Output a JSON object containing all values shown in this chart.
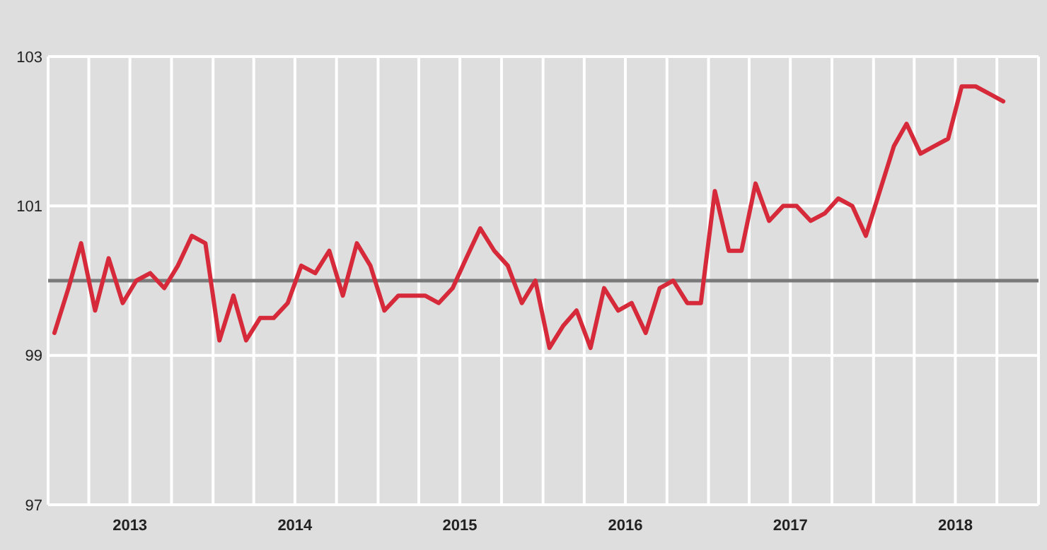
{
  "chart_data": {
    "type": "line",
    "x": [
      "2013-01-15",
      "2013-02-15",
      "2013-03-15",
      "2013-04-15",
      "2013-05-15",
      "2013-06-15",
      "2013-07-15",
      "2013-08-15",
      "2013-09-15",
      "2013-10-15",
      "2013-11-15",
      "2013-12-15",
      "2014-01-15",
      "2014-02-15",
      "2014-03-15",
      "2014-04-15",
      "2014-05-15",
      "2014-06-15",
      "2014-07-15",
      "2014-08-15",
      "2014-09-15",
      "2014-10-15",
      "2014-11-15",
      "2014-12-15",
      "2015-01-15",
      "2015-02-15",
      "2015-03-15",
      "2015-04-15",
      "2015-05-15",
      "2015-06-15",
      "2015-07-15",
      "2015-08-15",
      "2015-09-15",
      "2015-10-15",
      "2015-11-15",
      "2015-12-15",
      "2016-01-15",
      "2016-02-15",
      "2016-03-15",
      "2016-04-15",
      "2016-05-15",
      "2016-06-15",
      "2016-07-15",
      "2016-08-15",
      "2016-09-15",
      "2016-10-15",
      "2016-11-15",
      "2016-12-15",
      "2017-01-15",
      "2017-02-15",
      "2017-03-15",
      "2017-04-15",
      "2017-05-15",
      "2017-06-15",
      "2017-07-15",
      "2017-08-15",
      "2017-09-15",
      "2017-10-15",
      "2017-11-15",
      "2017-12-15",
      "2018-01-15",
      "2018-02-15",
      "2018-03-15",
      "2018-04-15",
      "2018-05-15",
      "2018-06-15",
      "2018-07-15",
      "2018-08-15",
      "2018-09-15",
      "2018-10-15"
    ],
    "series": [
      {
        "color": "#d62a3a",
        "values": [
          99.3,
          99.9,
          100.5,
          99.6,
          100.3,
          99.7,
          100,
          100.1,
          99.9,
          100.2,
          100.6,
          100.5,
          99.2,
          99.8,
          99.2,
          99.5,
          99.5,
          99.7,
          100.2,
          100.1,
          100.4,
          99.8,
          100.5,
          100.2,
          99.6,
          99.8,
          99.8,
          99.8,
          99.7,
          99.9,
          100.3,
          100.7,
          100.4,
          100.2,
          99.7,
          100,
          99.1,
          99.4,
          99.6,
          99.1,
          99.9,
          99.6,
          99.7,
          99.3,
          99.9,
          100,
          99.7,
          99.7,
          101.2,
          100.4,
          100.4,
          101.3,
          100.8,
          101,
          101,
          100.8,
          100.9,
          101.1,
          101,
          100.6,
          101.2,
          101.8,
          102.1,
          101.7,
          101.8,
          101.9,
          102.6,
          102.6,
          102.5,
          102.4
        ]
      }
    ],
    "xlim": [
      "2013-01-01",
      "2019-01-01"
    ],
    "xticks": [
      {
        "value": "2013-04-01",
        "label": null
      },
      {
        "value": "2013-07-01",
        "label": "2013"
      },
      {
        "value": "2013-10-01",
        "label": null
      },
      {
        "value": "2014-01-01",
        "label": null
      },
      {
        "value": "2014-04-01",
        "label": null
      },
      {
        "value": "2014-07-01",
        "label": "2014"
      },
      {
        "value": "2014-10-01",
        "label": null
      },
      {
        "value": "2015-01-01",
        "label": null
      },
      {
        "value": "2015-04-01",
        "label": null
      },
      {
        "value": "2015-07-01",
        "label": "2015"
      },
      {
        "value": "2015-10-01",
        "label": null
      },
      {
        "value": "2016-01-01",
        "label": null
      },
      {
        "value": "2016-04-01",
        "label": null
      },
      {
        "value": "2016-07-01",
        "label": "2016"
      },
      {
        "value": "2016-10-01",
        "label": null
      },
      {
        "value": "2017-01-01",
        "label": null
      },
      {
        "value": "2017-04-01",
        "label": null
      },
      {
        "value": "2017-07-01",
        "label": "2017"
      },
      {
        "value": "2017-10-01",
        "label": null
      },
      {
        "value": "2018-01-01",
        "label": null
      },
      {
        "value": "2018-04-01",
        "label": null
      },
      {
        "value": "2018-07-01",
        "label": "2018"
      },
      {
        "value": "2018-10-01",
        "label": null
      }
    ],
    "ylim": [
      97,
      103
    ],
    "yticks": [
      97,
      99,
      101,
      103
    ],
    "ref_lines": [
      {
        "axis": "y",
        "value": 100,
        "color": "#7a7a7a"
      }
    ],
    "grid": true,
    "marker": "none",
    "line_style": "solid"
  }
}
